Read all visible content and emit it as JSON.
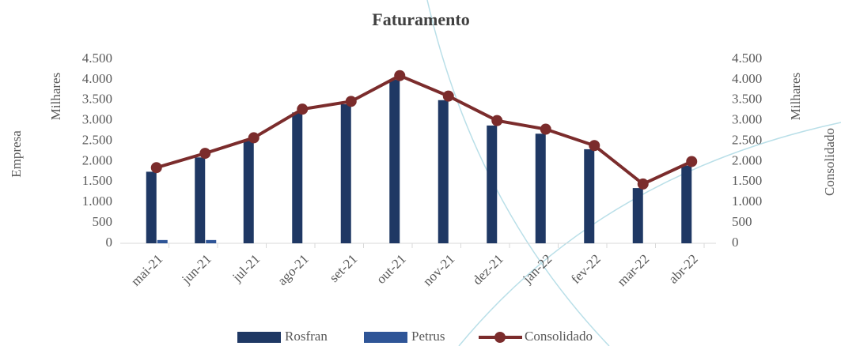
{
  "chart_data": {
    "type": "bar-line",
    "title": "Faturamento",
    "y_label": "Empresa",
    "y_unit": "Milhares",
    "y2_label": "Consolidado",
    "y2_unit": "Milhares",
    "categories": [
      "mai-21",
      "jun-21",
      "jul-21",
      "ago-21",
      "set-21",
      "out-21",
      "nov-21",
      "dez-21",
      "jan-22",
      "fev-22",
      "mar-22",
      "abr-22"
    ],
    "series": [
      {
        "name": "Rosfran",
        "type": "bar",
        "color": "#1f3864",
        "values": [
          1750,
          2100,
          2500,
          3200,
          3400,
          4000,
          3500,
          2880,
          2680,
          2300,
          1350,
          1900
        ]
      },
      {
        "name": "Petrus",
        "type": "bar",
        "color": "#2f5597",
        "values": [
          80,
          80,
          null,
          null,
          null,
          null,
          null,
          null,
          null,
          null,
          null,
          null
        ]
      },
      {
        "name": "Consolidado",
        "type": "line",
        "axis": "y2",
        "color": "#7b2c2c",
        "values": [
          1850,
          2200,
          2580,
          3280,
          3470,
          4100,
          3600,
          3000,
          2790,
          2390,
          1450,
          2000
        ]
      }
    ],
    "ylim": [
      0,
      4500
    ],
    "yticks": [
      0,
      {
        "value": 500,
        "label": "500"
      },
      {
        "value": 1000,
        "label": "1.000"
      },
      {
        "value": 1500,
        "label": "1.500"
      },
      {
        "value": 2000,
        "label": "2.000"
      },
      {
        "value": 2500,
        "label": "2.500"
      },
      {
        "value": 3000,
        "label": "3.000"
      },
      {
        "value": 3500,
        "label": "3.500"
      },
      {
        "value": 4000,
        "label": "4.000"
      },
      {
        "value": 4500,
        "label": "4.500"
      }
    ],
    "y2lim": [
      0,
      4500
    ],
    "y2ticks": [
      0,
      {
        "value": 500,
        "label": "500"
      },
      {
        "value": 1000,
        "label": "1.000"
      },
      {
        "value": 1500,
        "label": "1.500"
      },
      {
        "value": 2000,
        "label": "2.000"
      },
      {
        "value": 2500,
        "label": "2.500"
      },
      {
        "value": 3000,
        "label": "3.000"
      },
      {
        "value": 3500,
        "label": "3.500"
      },
      {
        "value": 4000,
        "label": "4.000"
      },
      {
        "value": 4500,
        "label": "4.500"
      }
    ],
    "legend": "bottom"
  }
}
